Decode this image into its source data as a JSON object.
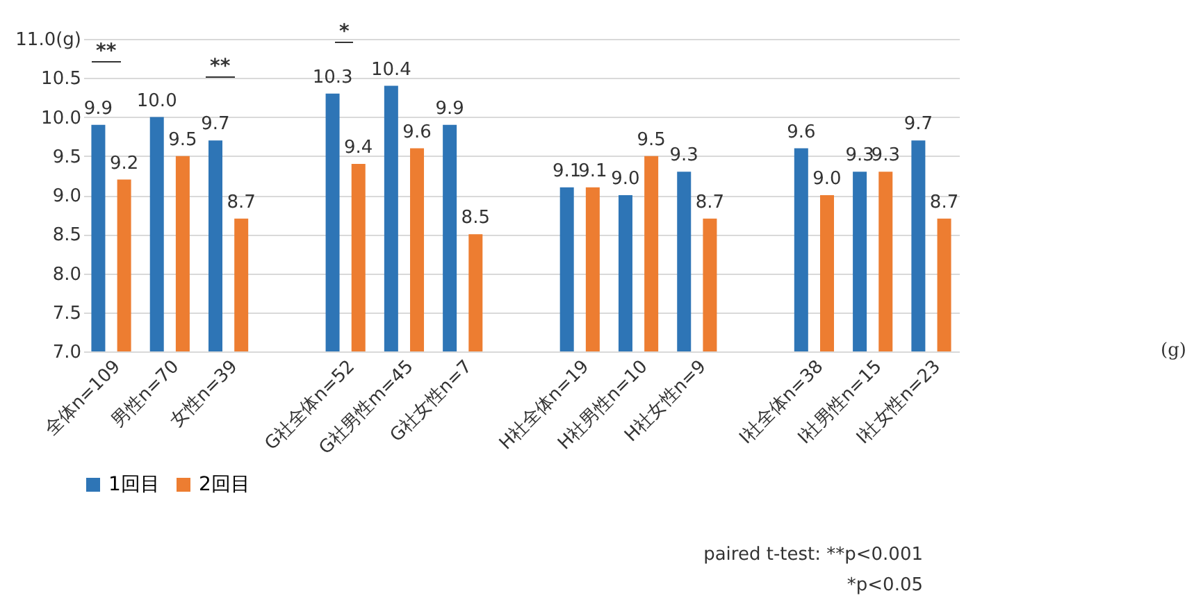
{
  "chart_data": {
    "type": "bar",
    "categories": [
      "全体n=109",
      "男性n=70",
      "女性n=39",
      null,
      "G社全体n=52",
      "G社男性m=45",
      "G社女性n=7",
      null,
      "H社全体n=19",
      "H社男性n=10",
      "H社女性n=9",
      null,
      "I社全体n=38",
      "I社男性n=15",
      "I社女性n=23"
    ],
    "series": [
      {
        "name": "1回目",
        "color": "#2e75b6",
        "values": [
          9.9,
          10.0,
          9.7,
          null,
          10.3,
          10.4,
          9.9,
          null,
          9.1,
          9.0,
          9.3,
          null,
          9.6,
          9.3,
          9.7
        ],
        "value_labels": [
          "9.9",
          "10.0",
          "9.7",
          null,
          "10.3",
          "10.4",
          "9.9",
          null,
          "9.1",
          "9.0",
          "9.3",
          null,
          "9.6",
          "9.3",
          "9.7"
        ]
      },
      {
        "name": "2回目",
        "color": "#ed7d31",
        "values": [
          9.2,
          9.5,
          8.7,
          null,
          9.4,
          9.6,
          8.5,
          null,
          9.1,
          9.5,
          8.7,
          null,
          9.0,
          9.3,
          8.7
        ],
        "value_labels": [
          "9.2",
          "9.5",
          "8.7",
          null,
          "9.4",
          "9.6",
          "8.5",
          null,
          "9.1",
          "9.5",
          "8.7",
          null,
          "9.0",
          "9.3",
          "8.7"
        ]
      }
    ],
    "ylim": [
      7.0,
      11.0
    ],
    "yticks": [
      {
        "value": 7,
        "label": "7.0"
      },
      {
        "value": 7.5,
        "label": "7.5"
      },
      {
        "value": 8,
        "label": "8.0"
      },
      {
        "value": 8.5,
        "label": "8.5"
      },
      {
        "value": 9,
        "label": "9.0"
      },
      {
        "value": 9.5,
        "label": "9.5"
      },
      {
        "value": 10,
        "label": "10.0"
      },
      {
        "value": 10.5,
        "label": "10.5"
      },
      {
        "value": 11,
        "label": "11.0(g)"
      }
    ],
    "grid": "y",
    "legend": "bottom",
    "annotations": [
      "**",
      "**",
      "*",
      "paired t-test: **p<0.001",
      "*p<0.05",
      "(g)"
    ]
  }
}
